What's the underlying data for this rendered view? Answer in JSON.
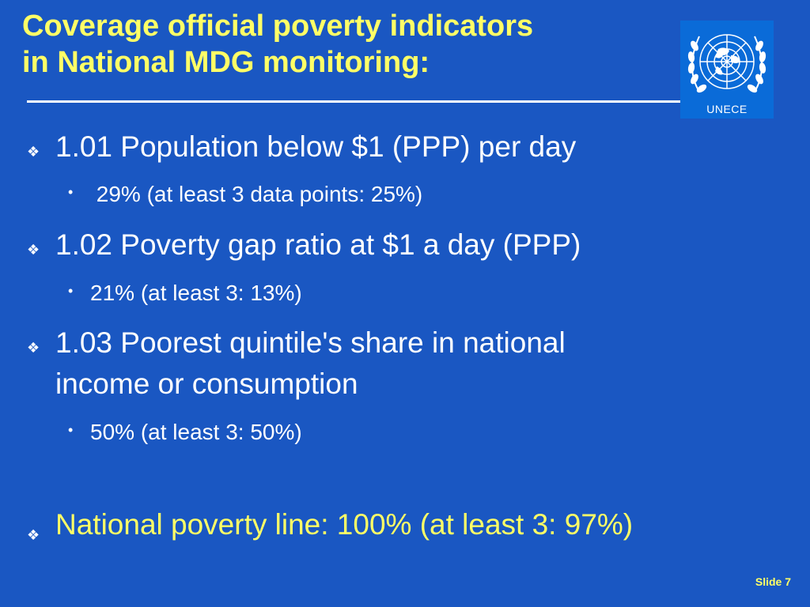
{
  "slide": {
    "title_line1": "Coverage official poverty indicators",
    "title_line2": "in National MDG monitoring:",
    "logo_text": "UNECE",
    "footer": "Slide 7"
  },
  "bullets": [
    {
      "text": "1.01 Population below $1 (PPP) per day",
      "sub": " 29% (at least 3 data points: 25%)"
    },
    {
      "text": "1.02 Poverty gap ratio at $1 a day (PPP)",
      "sub": "21% (at least 3: 13%)"
    },
    {
      "text_line1": "1.03 Poorest quintile's share in national",
      "text_line2": "income or consumption",
      "sub": "50% (at least 3: 50%)"
    },
    {
      "text": "National poverty line: 100% (at least 3: 97%)"
    }
  ],
  "colors": {
    "background": "#1a57c2",
    "title": "#ffff66",
    "accent_line": "#ffff66",
    "text": "#ffffff"
  },
  "icons": {
    "main_bullet": "diamond-four-icon",
    "sub_bullet": "dot-icon",
    "logo": "un-emblem-icon"
  }
}
